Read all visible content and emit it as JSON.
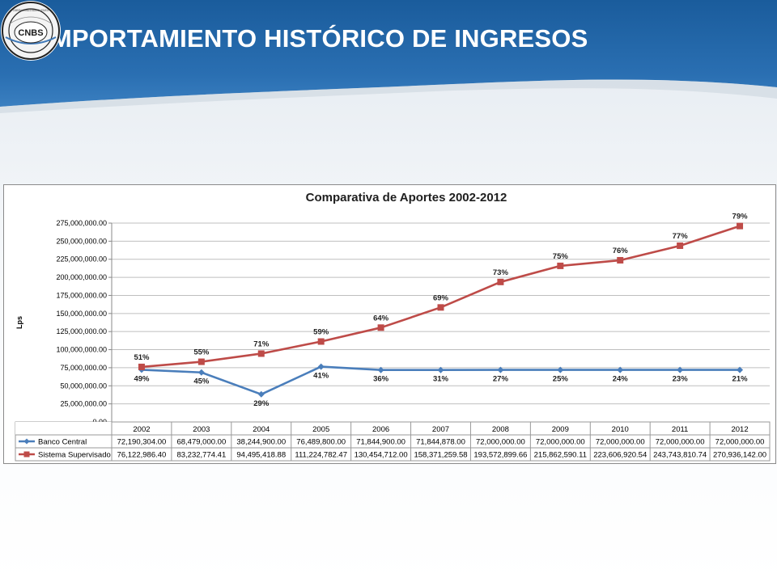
{
  "header": {
    "title": "COMPORTAMIENTO HISTÓRICO DE INGRESOS",
    "logo_text": "CNBS",
    "logo_ring_text": "COMISIÓN NACIONAL DE BANCOS Y SEGUROS"
  },
  "colors": {
    "header_blue": "#1f64a6",
    "header_dark": "#164f86",
    "banco_central": "#4a7ebb",
    "sistema_supervisado": "#be4b48"
  },
  "icons": {
    "logo": "cnbs-seal-icon",
    "banco_marker": "diamond-marker",
    "sistema_marker": "square-marker"
  },
  "chart_data": {
    "type": "line",
    "title": "Comparativa de Aportes 2002-2012",
    "ylabel": "Lps",
    "xlabel": "",
    "categories": [
      "2002",
      "2003",
      "2004",
      "2005",
      "2006",
      "2007",
      "2008",
      "2009",
      "2010",
      "2011",
      "2012"
    ],
    "ylim": [
      0,
      275000000
    ],
    "ytick_step": 25000000,
    "ytick_labels": [
      "0.00",
      "25,000,000.00",
      "50,000,000.00",
      "75,000,000.00",
      "100,000,000.00",
      "125,000,000.00",
      "150,000,000.00",
      "175,000,000.00",
      "200,000,000.00",
      "225,000,000.00",
      "250,000,000.00",
      "275,000,000.00"
    ],
    "grid": true,
    "legend": "data-table",
    "series": [
      {
        "name": "Banco Central",
        "color": "#4a7ebb",
        "marker": "diamond",
        "values": [
          72190304.0,
          68479000.0,
          38244900.0,
          76489800.0,
          71844900.0,
          71844878.0,
          72000000.0,
          72000000.0,
          72000000.0,
          72000000.0,
          72000000.0
        ],
        "table_labels": [
          "72,190,304.00",
          "68,479,000.00",
          "38,244,900.00",
          "76,489,800.00",
          "71,844,900.00",
          "71,844,878.00",
          "72,000,000.00",
          "72,000,000.00",
          "72,000,000.00",
          "72,000,000.00",
          "72,000,000.00"
        ],
        "pct_labels": [
          "49%",
          "45%",
          "29%",
          "41%",
          "36%",
          "31%",
          "27%",
          "25%",
          "24%",
          "23%",
          "21%"
        ]
      },
      {
        "name": "Sistema Supervisado",
        "color": "#be4b48",
        "marker": "square",
        "values": [
          76122986.4,
          83232774.41,
          94495418.88,
          111224782.47,
          130454712.0,
          158371259.58,
          193572899.66,
          215862590.11,
          223606920.54,
          243743810.74,
          270936142.0
        ],
        "table_labels": [
          "76,122,986.40",
          "83,232,774.41",
          "94,495,418.88",
          "111,224,782.47",
          "130,454,712.00",
          "158,371,259.58",
          "193,572,899.66",
          "215,862,590.11",
          "223,606,920.54",
          "243,743,810.74",
          "270,936,142.00"
        ],
        "pct_labels": [
          "51%",
          "55%",
          "71%",
          "59%",
          "64%",
          "69%",
          "73%",
          "75%",
          "76%",
          "77%",
          "79%"
        ]
      }
    ]
  }
}
